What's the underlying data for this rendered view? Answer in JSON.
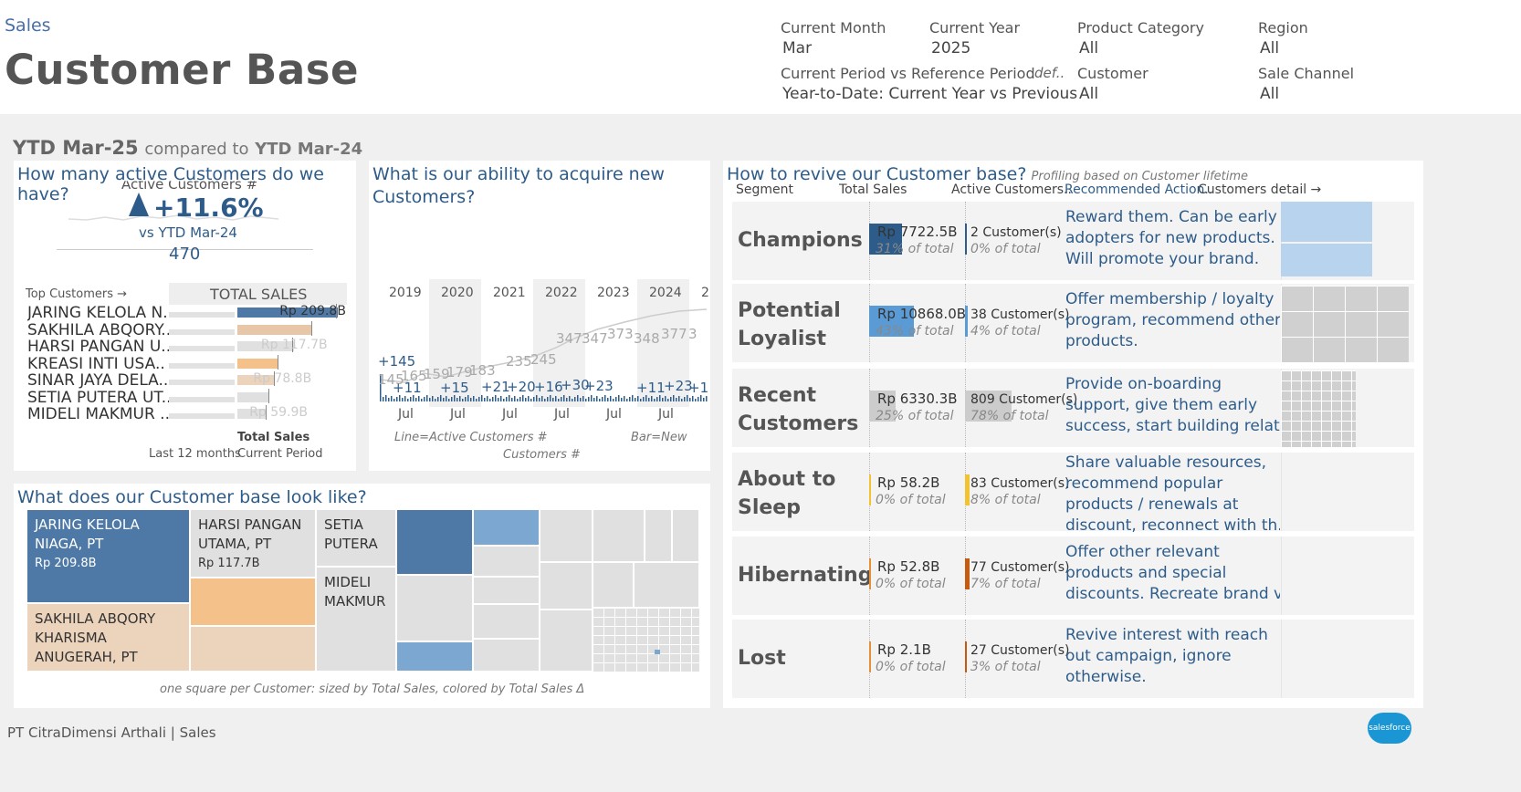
{
  "header": {
    "breadcrumb": "Sales",
    "title": "Customer Base",
    "filters": {
      "current_month": {
        "label": "Current Month",
        "value": "Mar"
      },
      "current_year": {
        "label": "Current Year",
        "value": "2025"
      },
      "product_category": {
        "label": "Product Category",
        "value": "All"
      },
      "region": {
        "label": "Region",
        "value": "All"
      },
      "period_compare": {
        "label": "Current Period vs Reference Period",
        "def": "def..",
        "value": "Year-to-Date: Current Year vs Previous"
      },
      "customer": {
        "label": "Customer",
        "value": "All"
      },
      "sale_channel": {
        "label": "Sale Channel",
        "value": "All"
      }
    }
  },
  "period": {
    "current": "YTD Mar-25",
    "compared": "compared to",
    "reference": "YTD Mar-24"
  },
  "active": {
    "title": "How many active Customers do we have?",
    "sub": "Active Customers #",
    "change": "+11.6%",
    "vs": "vs YTD Mar-24",
    "count": "470"
  },
  "top_customers": {
    "link": "Top Customers →",
    "header": "TOTAL SALES",
    "footer_label": "Total Sales",
    "footer_left": "Last 12 months",
    "footer_right": "Current Period",
    "rows": [
      {
        "name": "JARING KELOLA N..",
        "value": 209.8,
        "label": "Rp 209.8B",
        "color": "#4e79a7"
      },
      {
        "name": "SAKHILA ABQORY..",
        "value": 157.0,
        "label": "",
        "color": "#e8c7a8"
      },
      {
        "name": "HARSI PANGAN U..",
        "value": 117.7,
        "label": "Rp 117.7B",
        "color": "#e0e0e0"
      },
      {
        "name": "KREASI INTI USA..",
        "value": 85.0,
        "label": "",
        "color": "#f5c18a"
      },
      {
        "name": "SINAR JAYA DELA..",
        "value": 78.8,
        "label": "Rp 78.8B",
        "color": "#ecd3bb"
      },
      {
        "name": "SETIA PUTERA UT..",
        "value": 66.0,
        "label": "",
        "color": "#e0e0e0"
      },
      {
        "name": "MIDELI MAKMUR ..",
        "value": 59.9,
        "label": "Rp 59.9B",
        "color": "#e0e0e0"
      }
    ]
  },
  "acquire": {
    "title_line1": "What is our ability to acquire new",
    "title_line2": "Customers?",
    "years": [
      "2019",
      "2020",
      "2021",
      "2022",
      "2023",
      "2024",
      "2."
    ],
    "months": [
      "Jul",
      "Jul",
      "Jul",
      "Jul",
      "Jul",
      "Jul",
      "."
    ],
    "new_labels": [
      "+145",
      "+11",
      "+15",
      "+21",
      "+20",
      "+16",
      "+30",
      "+23",
      "+11",
      "+23",
      "+1"
    ],
    "active_labels": [
      "145",
      "165",
      "159",
      "179",
      "183",
      "235",
      "245",
      "347",
      "347",
      "373",
      "348",
      "377",
      "3"
    ],
    "legend_line": "Line=Active Customers #",
    "legend_bar": "Bar=New",
    "legend_customers": "Customers #"
  },
  "base": {
    "title": "What does our Customer base look like?",
    "caption": "one square per Customer: sized by Total Sales, colored by Total Sales Δ",
    "tiles": [
      {
        "name1": "JARING KELOLA",
        "name2": "NIAGA, PT",
        "value": "Rp 209.8B"
      },
      {
        "name1": "HARSI PANGAN",
        "name2": "UTAMA, PT",
        "value": "Rp 117.7B"
      },
      {
        "name1": "SETIA",
        "name2": "PUTERA"
      },
      {
        "name1": "MIDELI",
        "name2": "MAKMUR"
      },
      {
        "name1": "SAKHILA ABQORY",
        "name2": "KHARISMA",
        "name3": "ANUGERAH, PT"
      }
    ]
  },
  "revive": {
    "title": "How to revive our Customer base?",
    "subtitle": "Profiling based on Customer lifetime",
    "headers": {
      "segment": "Segment",
      "sales": "Total Sales",
      "active": "Active Customers..",
      "action": "Recommended Action..",
      "detail": "Customers detail →"
    },
    "segments": [
      {
        "name1": "Champions",
        "name2": "",
        "sales": "Rp 7722.5B",
        "sales_pct": "31% of total",
        "sales_share": 0.31,
        "sales_color": "#2e5c8a",
        "active": "2 Customer(s)",
        "active_pct": "0% of total",
        "active_share": 0.004,
        "active_color": "#2e5c8a",
        "action1": "Reward them. Can be early",
        "action2": "adopters for new products.",
        "action3": "Will promote your brand.",
        "action4": ""
      },
      {
        "name1": "Potential",
        "name2": "Loyalist",
        "sales": "Rp 10868.0B",
        "sales_pct": "43% of total",
        "sales_share": 0.43,
        "sales_color": "#5b9bd5",
        "active": "38 Customer(s)",
        "active_pct": "4% of total",
        "active_share": 0.04,
        "active_color": "#5b9bd5",
        "action1": "Offer membership / loyalty",
        "action2": "program, recommend other",
        "action3": "products.",
        "action4": ""
      },
      {
        "name1": "Recent",
        "name2": "Customers",
        "sales": "Rp 6330.3B",
        "sales_pct": "25% of total",
        "sales_share": 0.25,
        "sales_color": "#cccccc",
        "active": "809 Customer(s)",
        "active_pct": "78% of total",
        "active_share": 0.78,
        "active_color": "#cccccc",
        "action1": "Provide on-boarding",
        "action2": "support, give them early",
        "action3": "success, start building relat..",
        "action4": ""
      },
      {
        "name1": "About to",
        "name2": "Sleep",
        "sales": "Rp 58.2B",
        "sales_pct": "0% of total",
        "sales_share": 0.002,
        "sales_color": "#f1c232",
        "active": "83 Customer(s)",
        "active_pct": "8% of total",
        "active_share": 0.08,
        "active_color": "#f1c232",
        "action1": "Share valuable resources,",
        "action2": "recommend popular",
        "action3": "products / renewals at",
        "action4": "discount, reconnect with th.."
      },
      {
        "name1": "Hibernating",
        "name2": "",
        "sales": "Rp 52.8B",
        "sales_pct": "0% of total",
        "sales_share": 0.002,
        "sales_color": "#e69138",
        "active": "77 Customer(s)",
        "active_pct": "7% of total",
        "active_share": 0.07,
        "active_color": "#c55a11",
        "action1": "Offer other relevant",
        "action2": "products and special",
        "action3": "discounts. Recreate brand v..",
        "action4": ""
      },
      {
        "name1": "Lost",
        "name2": "",
        "sales": "Rp 2.1B",
        "sales_pct": "0% of total",
        "sales_share": 0.001,
        "sales_color": "#e69138",
        "active": "27 Customer(s)",
        "active_pct": "3% of total",
        "active_share": 0.03,
        "active_color": "#c55a11",
        "action1": "Revive interest with reach",
        "action2": "out campaign, ignore",
        "action3": "otherwise.",
        "action4": ""
      }
    ]
  },
  "footer": {
    "text": "PT CitraDimensi Arthali | Sales",
    "logo": "salesforce"
  }
}
